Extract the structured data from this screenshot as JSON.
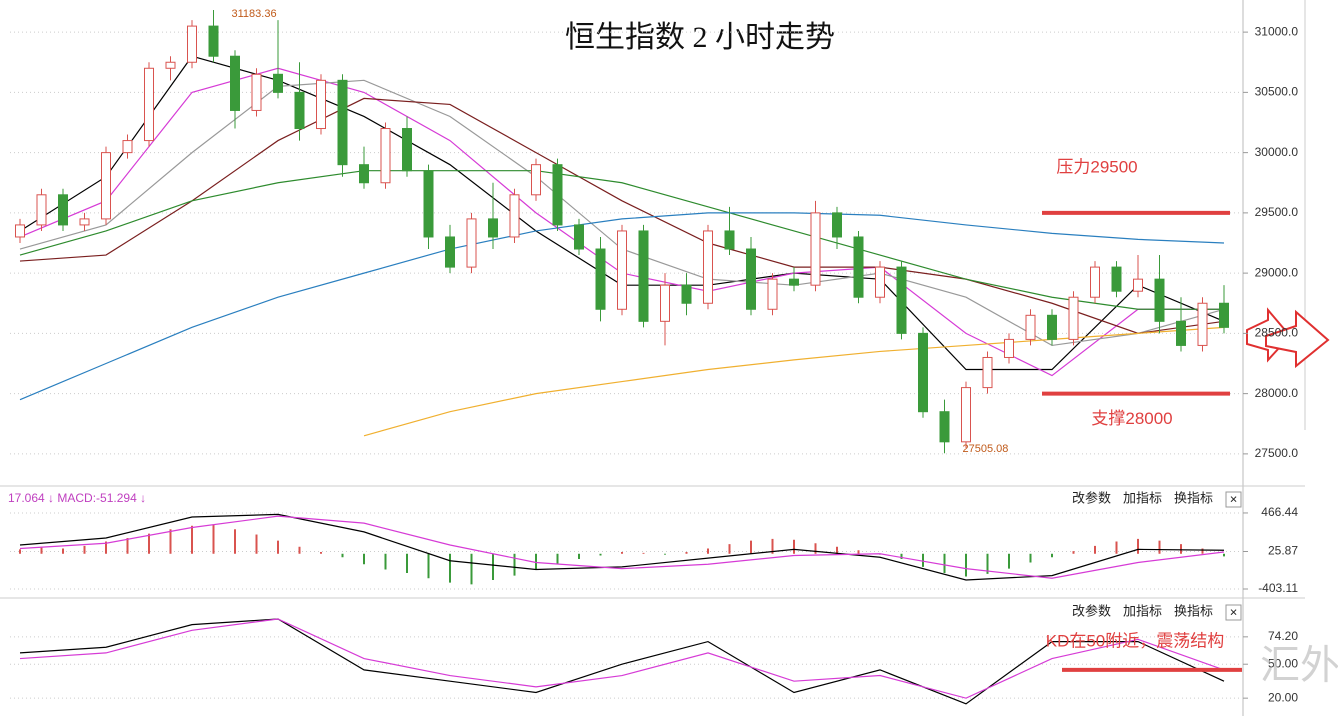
{
  "chart_data": [
    {
      "type": "candlestick",
      "title": "恒生指数 2 小时走势",
      "open": [
        29300,
        29400,
        29650,
        29400,
        29450,
        30000,
        30100,
        30700,
        30750,
        31050,
        30800,
        30350,
        30650,
        30500,
        30200,
        30600,
        29900,
        29750,
        30200,
        29850,
        29300,
        29050,
        29450,
        29300,
        29650,
        29900,
        29400,
        29200,
        28700,
        29350,
        28600,
        28900,
        28750,
        29350,
        29200,
        28700,
        28950,
        28900,
        29500,
        29300,
        28800,
        29050,
        28500,
        27850,
        27600,
        28050,
        28300,
        28450,
        28650,
        28450,
        28800,
        29050,
        28850,
        28950,
        28600,
        28400,
        28750
      ],
      "high": [
        29450,
        29700,
        29700,
        29500,
        30050,
        30150,
        30750,
        30800,
        31100,
        31183.36,
        30850,
        30700,
        31100,
        30750,
        30650,
        30650,
        30050,
        30250,
        30300,
        29900,
        29400,
        29500,
        29750,
        29700,
        29950,
        29950,
        29450,
        29300,
        29400,
        29400,
        29000,
        29000,
        29400,
        29550,
        29300,
        29000,
        29050,
        29600,
        29550,
        29350,
        29100,
        29100,
        28550,
        27950,
        28100,
        28350,
        28500,
        28700,
        28700,
        28850,
        29100,
        29100,
        29150,
        29150,
        28800,
        28800,
        28900
      ],
      "low": [
        29250,
        29350,
        29350,
        29350,
        29400,
        29950,
        30050,
        30600,
        30700,
        30750,
        30200,
        30300,
        30450,
        30100,
        30150,
        29800,
        29700,
        29700,
        29800,
        29200,
        29000,
        29000,
        29200,
        29250,
        29600,
        29350,
        29150,
        28600,
        28650,
        28550,
        28400,
        28650,
        28700,
        29150,
        28650,
        28650,
        28850,
        28850,
        29200,
        28750,
        28750,
        28450,
        27800,
        27505.08,
        27550,
        28000,
        28250,
        28400,
        28400,
        28400,
        28750,
        28800,
        28800,
        28500,
        28350,
        28350,
        28500
      ],
      "close": [
        29400,
        29650,
        29400,
        29450,
        30000,
        30100,
        30700,
        30750,
        31050,
        30800,
        30350,
        30650,
        30500,
        30200,
        30600,
        29900,
        29750,
        30200,
        29850,
        29300,
        29050,
        29450,
        29300,
        29650,
        29900,
        29400,
        29200,
        28700,
        29350,
        28600,
        28900,
        28750,
        29350,
        29200,
        28700,
        28950,
        28900,
        29500,
        29300,
        28800,
        29050,
        28500,
        27850,
        27600,
        28050,
        28300,
        28450,
        28650,
        28450,
        28800,
        29050,
        28850,
        28950,
        28600,
        28400,
        28750,
        28550
      ],
      "up_color": "#d9534f",
      "down_color": "#3a9a3a",
      "ylim": [
        27250,
        31250
      ],
      "yticks": [
        {
          "value": 27500,
          "label": "27500.0"
        },
        {
          "value": 28000,
          "label": "28000.0"
        },
        {
          "value": 28500,
          "label": "28500.0"
        },
        {
          "value": 29000,
          "label": "29000.0"
        },
        {
          "value": 29500,
          "label": "29500.0"
        },
        {
          "value": 30000,
          "label": "30000.0"
        },
        {
          "value": 30500,
          "label": "30500.0"
        },
        {
          "value": 31000,
          "label": "31000.0"
        }
      ],
      "grid": true,
      "lines": [
        {
          "color": "#000000",
          "x": [
            0,
            4,
            8,
            12,
            16,
            20,
            24,
            28,
            32,
            36,
            40,
            44,
            48,
            52,
            56
          ],
          "values": [
            29350,
            29800,
            30800,
            30600,
            30300,
            29900,
            29350,
            28900,
            28900,
            29000,
            28950,
            28200,
            28200,
            28900,
            28600
          ]
        },
        {
          "color": "#d63bd6",
          "x": [
            0,
            4,
            8,
            12,
            16,
            20,
            24,
            28,
            32,
            36,
            40,
            44,
            48,
            52,
            56
          ],
          "values": [
            29300,
            29600,
            30500,
            30700,
            30500,
            30100,
            29500,
            29000,
            28850,
            29000,
            29050,
            28500,
            28150,
            28700,
            28700
          ]
        },
        {
          "color": "#999999",
          "x": [
            0,
            4,
            8,
            12,
            16,
            20,
            24,
            28,
            32,
            36,
            40,
            44,
            48,
            52,
            56
          ],
          "values": [
            29200,
            29400,
            30000,
            30550,
            30600,
            30300,
            29800,
            29200,
            28950,
            28900,
            29000,
            28800,
            28400,
            28500,
            28700
          ]
        },
        {
          "color": "#7a1f1f",
          "x": [
            0,
            4,
            8,
            12,
            16,
            20,
            24,
            28,
            32,
            36,
            40,
            44,
            48,
            52,
            56
          ],
          "values": [
            29100,
            29150,
            29600,
            30100,
            30450,
            30400,
            30000,
            29600,
            29250,
            29050,
            29050,
            28950,
            28750,
            28500,
            28600
          ]
        },
        {
          "color": "#2e8b2e",
          "x": [
            0,
            4,
            8,
            12,
            16,
            20,
            24,
            28,
            32,
            36,
            40,
            44,
            48,
            52,
            56
          ],
          "values": [
            29150,
            29350,
            29600,
            29750,
            29850,
            29850,
            29850,
            29750,
            29550,
            29350,
            29150,
            28950,
            28800,
            28700,
            28700
          ]
        },
        {
          "color": "#2a7fbf",
          "x": [
            0,
            4,
            8,
            12,
            16,
            20,
            24,
            28,
            32,
            36,
            40,
            44,
            48,
            52,
            56
          ],
          "values": [
            27950,
            28250,
            28550,
            28800,
            29000,
            29200,
            29350,
            29450,
            29500,
            29500,
            29480,
            29400,
            29330,
            29280,
            29250
          ]
        },
        {
          "color": "#f0b030",
          "x": [
            0,
            4,
            8,
            12,
            16,
            20,
            24,
            28,
            32,
            36,
            40,
            44,
            48,
            52,
            56
          ],
          "values": [
            null,
            null,
            null,
            null,
            27650,
            27850,
            28000,
            28100,
            28200,
            28280,
            28350,
            28400,
            28450,
            28500,
            28550
          ]
        }
      ],
      "max_label": 31183.36,
      "min_label": 27505.08,
      "levels": [
        {
          "value": 29500,
          "label": "压力29500"
        },
        {
          "value": 28000,
          "label": "支撑28000"
        }
      ],
      "level_color": "#e04040"
    },
    {
      "type": "macd",
      "header": "17.064 ↓ MACD:-51.294 ↓",
      "hist": [
        50,
        80,
        60,
        90,
        140,
        180,
        230,
        280,
        320,
        330,
        280,
        220,
        150,
        80,
        20,
        -40,
        -120,
        -180,
        -220,
        -280,
        -330,
        -350,
        -300,
        -250,
        -180,
        -120,
        -60,
        -20,
        20,
        10,
        -10,
        20,
        60,
        110,
        150,
        170,
        160,
        120,
        80,
        40,
        -10,
        -60,
        -150,
        -220,
        -260,
        -230,
        -170,
        -100,
        -40,
        30,
        90,
        140,
        170,
        150,
        110,
        60,
        -30
      ],
      "up_color": "#d9534f",
      "down_color": "#3a9a3a",
      "lines": [
        {
          "color": "#000000",
          "x": [
            0,
            4,
            8,
            12,
            16,
            20,
            24,
            28,
            32,
            36,
            40,
            44,
            48,
            52,
            56
          ],
          "values": [
            100,
            180,
            420,
            450,
            250,
            -80,
            -180,
            -150,
            -50,
            50,
            -40,
            -300,
            -250,
            50,
            40
          ]
        },
        {
          "color": "#d63bd6",
          "x": [
            0,
            4,
            8,
            12,
            16,
            20,
            24,
            28,
            32,
            36,
            40,
            44,
            48,
            52,
            56
          ],
          "values": [
            60,
            120,
            300,
            430,
            350,
            100,
            -100,
            -170,
            -120,
            -20,
            0,
            -170,
            -280,
            -100,
            20
          ]
        }
      ],
      "ylim": [
        -483,
        729
      ],
      "yticks": [
        -403.11,
        25.87,
        466.44
      ],
      "grid": true
    },
    {
      "type": "kd",
      "note": "KD在50附近，震荡结构",
      "lines": [
        {
          "color": "#000000",
          "x": [
            0,
            4,
            8,
            12,
            16,
            20,
            24,
            28,
            32,
            36,
            40,
            44,
            48,
            52,
            56
          ],
          "values": [
            60,
            65,
            85,
            90,
            45,
            35,
            25,
            50,
            70,
            25,
            45,
            15,
            70,
            70,
            35
          ]
        },
        {
          "color": "#d63bd6",
          "x": [
            0,
            4,
            8,
            12,
            16,
            20,
            24,
            28,
            32,
            36,
            40,
            44,
            48,
            52,
            56
          ],
          "values": [
            55,
            60,
            80,
            90,
            55,
            40,
            30,
            40,
            60,
            35,
            40,
            20,
            55,
            72,
            45
          ]
        }
      ],
      "level": 45,
      "level_color": "#e04040",
      "ylim": [
        6,
        105
      ],
      "yticks": [
        {
          "value": 20,
          "label": "20.00"
        },
        {
          "value": 50,
          "label": "50.00"
        },
        {
          "value": 74.2,
          "label": "74.20"
        }
      ],
      "grid": true
    }
  ],
  "toolbar": [
    "改参数",
    "加指标",
    "换指标",
    "×"
  ],
  "watermark": "汇外网"
}
